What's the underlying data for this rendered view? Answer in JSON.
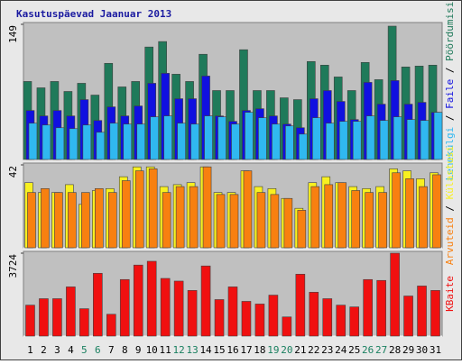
{
  "legend_separator": " / ",
  "chart_data": [
    {
      "type": "bar",
      "title": "Kasutuspäevad Jaanuar 2013",
      "ylim": [
        0,
        149
      ],
      "yticks": [
        149
      ],
      "series": [
        {
          "name": "Pöördumisi",
          "color": "#1f7a5a",
          "values": [
            86,
            79,
            86,
            75,
            84,
            71,
            106,
            80,
            86,
            124,
            130,
            94,
            86,
            116,
            76,
            76,
            121,
            76,
            76,
            68,
            66,
            108,
            104,
            91,
            76,
            107,
            88,
            147,
            102,
            103,
            104
          ]
        },
        {
          "name": "Faile",
          "color": "#1010e0",
          "values": [
            54,
            48,
            54,
            48,
            66,
            43,
            58,
            48,
            59,
            84,
            95,
            67,
            67,
            92,
            48,
            42,
            54,
            56,
            48,
            39,
            35,
            67,
            76,
            64,
            44,
            85,
            61,
            87,
            61,
            63,
            52
          ]
        },
        {
          "name": "Lehekülgi",
          "color": "#30b8f0",
          "values": [
            40,
            38,
            35,
            34,
            38,
            30,
            40,
            39,
            39,
            47,
            48,
            40,
            39,
            48,
            47,
            39,
            52,
            46,
            39,
            37,
            28,
            46,
            40,
            42,
            42,
            48,
            43,
            47,
            44,
            43,
            52
          ]
        }
      ]
    },
    {
      "type": "bar",
      "ylim": [
        0,
        42
      ],
      "yticks": [
        42
      ],
      "series": [
        {
          "name": "Külastusi",
          "color": "#f8f020",
          "values": [
            33,
            28,
            28,
            32,
            22,
            29,
            30,
            36,
            41,
            41,
            31,
            32,
            33,
            41,
            28,
            28,
            39,
            31,
            30,
            25,
            20,
            33,
            36,
            33,
            31,
            30,
            31,
            40,
            39,
            35,
            38
          ]
        },
        {
          "name": "Arvuteid",
          "color": "#f88010",
          "values": [
            28,
            30,
            28,
            28,
            28,
            30,
            28,
            34,
            39,
            40,
            28,
            31,
            31,
            41,
            27,
            27,
            39,
            28,
            27,
            25,
            19,
            31,
            32,
            33,
            29,
            28,
            28,
            38,
            35,
            31,
            37
          ]
        }
      ]
    },
    {
      "type": "bar",
      "ylim": [
        0,
        3724
      ],
      "yticks": [
        3724
      ],
      "categories": [
        "1",
        "2",
        "3",
        "4",
        "5",
        "6",
        "7",
        "8",
        "9",
        "10",
        "11",
        "12",
        "13",
        "14",
        "15",
        "16",
        "17",
        "18",
        "19",
        "20",
        "21",
        "22",
        "23",
        "24",
        "25",
        "26",
        "27",
        "28",
        "29",
        "30",
        "31"
      ],
      "category_colors": [
        "#000000",
        "#000000",
        "#000000",
        "#000000",
        "#1a8060",
        "#1a8060",
        "#000000",
        "#000000",
        "#000000",
        "#000000",
        "#000000",
        "#1a8060",
        "#1a8060",
        "#000000",
        "#000000",
        "#000000",
        "#000000",
        "#000000",
        "#1a8060",
        "#1a8060",
        "#000000",
        "#000000",
        "#000000",
        "#000000",
        "#000000",
        "#1a8060",
        "#1a8060",
        "#000000",
        "#000000",
        "#000000",
        "#000000"
      ],
      "series": [
        {
          "name": "KBaite",
          "color": "#f01010",
          "values": [
            1390,
            1680,
            1680,
            2210,
            1230,
            2820,
            980,
            2540,
            3190,
            3360,
            2590,
            2470,
            2050,
            3150,
            1640,
            2210,
            1560,
            1440,
            1840,
            860,
            2780,
            1970,
            1680,
            1390,
            1310,
            2540,
            2500,
            3724,
            1800,
            2250,
            2050
          ]
        }
      ]
    }
  ]
}
